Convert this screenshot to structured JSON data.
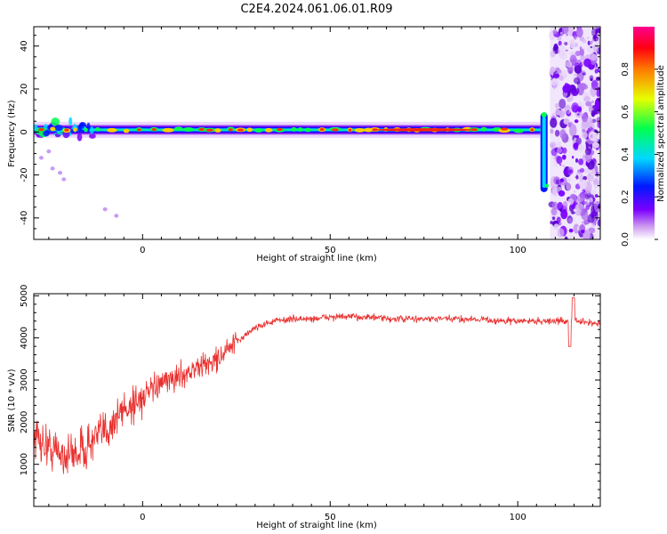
{
  "title": "C2E4.2024.061.06.01.R09",
  "chart_data": [
    {
      "type": "heatmap",
      "title": "C2E4.2024.061.06.01.R09",
      "xlabel": "Height of straight line (km)",
      "ylabel": "Frequency (Hz)",
      "xlim": [
        -29,
        122
      ],
      "ylim": [
        -50,
        49
      ],
      "x_ticks": [
        0,
        50,
        100
      ],
      "x_tick_labels": [
        "0",
        "50",
        "100"
      ],
      "y_ticks": [
        40,
        20,
        0,
        -20,
        -40
      ],
      "y_tick_labels": [
        "40",
        "20",
        "0",
        "-20",
        "-40"
      ],
      "band": {
        "description_values": "narrow high-amplitude band near 0 Hz from -29 to about 106 km; spectral spike near 107 km; broadband noise beyond 110 km",
        "center_hz": 1,
        "x_start": -29,
        "x_end": 106,
        "spike_x": 107,
        "spike_range_hz": [
          -28,
          9
        ],
        "noise_start_x": 110
      },
      "colorbar": {
        "label": "Normalized spectral amplitude",
        "range": [
          0.0,
          1.0
        ],
        "ticks": [
          0.0,
          0.2,
          0.4,
          0.6,
          0.8
        ],
        "tick_labels": [
          "0.0",
          "0.2",
          "0.4",
          "0.6",
          "0.8"
        ],
        "colormap": "rainbow (white-violet-blue-cyan-green-yellow-red-magenta)"
      },
      "grid": false
    },
    {
      "type": "line",
      "xlabel": "Height of straight line (km)",
      "ylabel": "SNR (10 * v/v)",
      "xlim": [
        -29,
        122
      ],
      "ylim": [
        0,
        5050
      ],
      "x_ticks": [
        0,
        50,
        100
      ],
      "x_tick_labels": [
        "0",
        "50",
        "100"
      ],
      "y_ticks": [
        1000,
        2000,
        3000,
        4000,
        5000
      ],
      "y_tick_labels": [
        "1000",
        "2000",
        "3000",
        "4000",
        "5000"
      ],
      "color": "#e8302e",
      "series": [
        {
          "x": [
            -29,
            -25,
            -20,
            -15,
            -10,
            -5,
            0,
            5,
            10,
            15,
            20,
            25,
            30,
            35,
            40,
            45,
            50,
            55,
            60,
            65,
            70,
            75,
            80,
            85,
            90,
            95,
            100,
            105,
            110,
            115,
            120,
            122
          ],
          "y": [
            1700,
            1400,
            1200,
            1400,
            1800,
            2300,
            2600,
            2900,
            3100,
            3300,
            3500,
            3900,
            4250,
            4400,
            4450,
            4450,
            4500,
            4500,
            4500,
            4450,
            4450,
            4450,
            4450,
            4450,
            4450,
            4400,
            4400,
            4400,
            4400,
            4400,
            4350,
            4350
          ]
        }
      ],
      "grid": false
    }
  ]
}
